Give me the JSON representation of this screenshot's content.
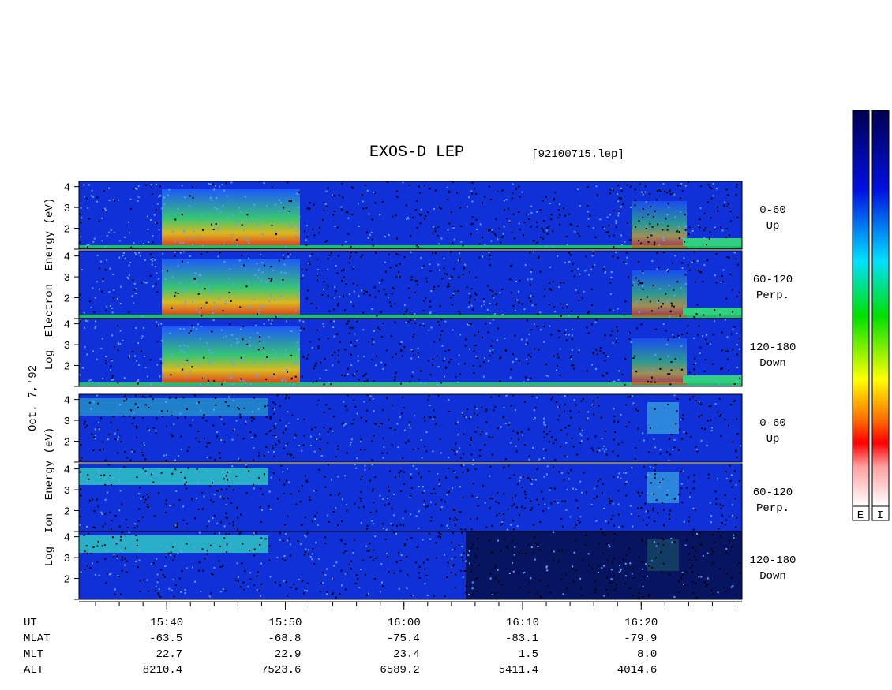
{
  "title": "EXOS-D LEP",
  "file": "[92100715.lep]",
  "date": "Oct. 7,'92",
  "electron_axis_label": "Log  Electron  Energy (eV)",
  "ion_axis_label": "Log  Ion  Energy (eV)",
  "ylim": [
    1,
    4.25
  ],
  "yticks": [
    1,
    2,
    3,
    4
  ],
  "panels": [
    {
      "angle": "0-60",
      "direction": "Up"
    },
    {
      "angle": "60-120",
      "direction": "Perp."
    },
    {
      "angle": "120-180",
      "direction": "Down"
    },
    {
      "angle": "0-60",
      "direction": "Up"
    },
    {
      "angle": "60-120",
      "direction": "Perp."
    },
    {
      "angle": "120-180",
      "direction": "Down"
    }
  ],
  "xlim": [
    932.6,
    988.5
  ],
  "xticks": [
    {
      "value": 940,
      "label": "15:40"
    },
    {
      "value": 950,
      "label": "15:50"
    },
    {
      "value": 960,
      "label": "16:00"
    },
    {
      "value": 970,
      "label": "16:10"
    },
    {
      "value": 980,
      "label": "16:20"
    }
  ],
  "footer": {
    "labels": [
      "UT",
      "MLAT",
      "MLT",
      "ALT"
    ],
    "rows": [
      [
        "-63.5",
        "-68.8",
        "-75.4",
        "-83.1",
        "-79.9"
      ],
      [
        "22.7",
        "22.9",
        "23.4",
        "1.5",
        "8.0"
      ],
      [
        "8210.4",
        "7523.6",
        "6589.2",
        "5411.4",
        "4014.6"
      ]
    ]
  },
  "colorbar_labels": [
    "E",
    "I"
  ]
}
